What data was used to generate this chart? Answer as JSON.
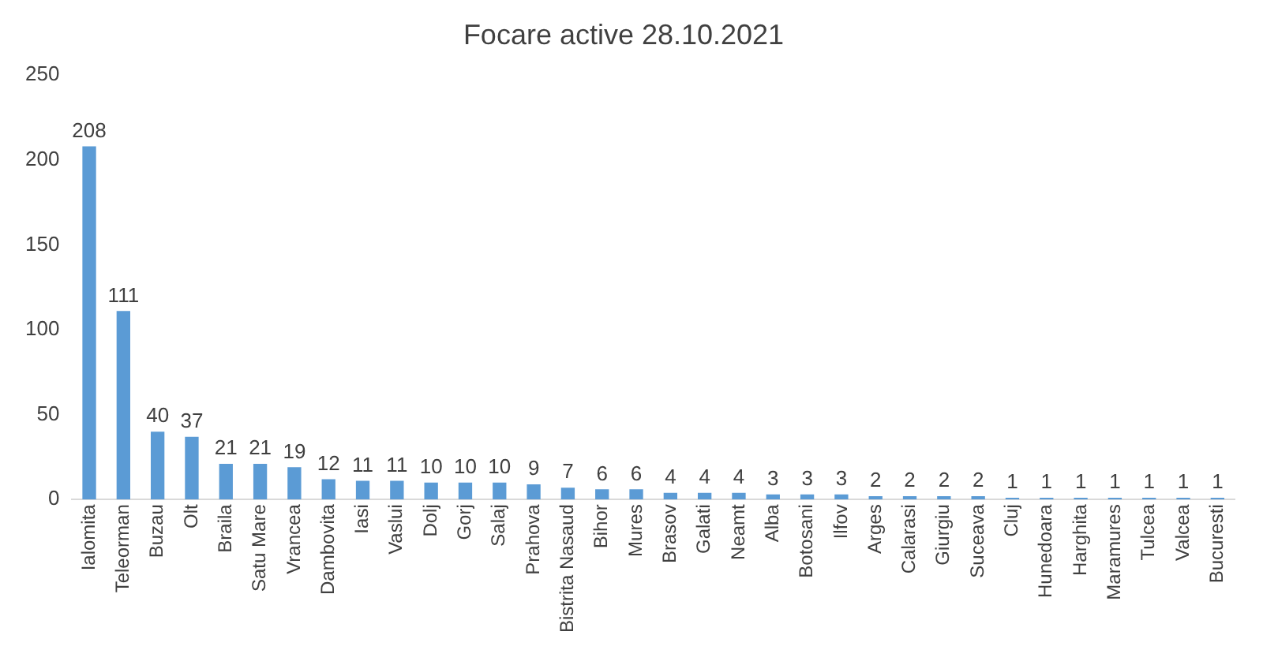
{
  "chart_data": {
    "type": "bar",
    "title": "Focare active 28.10.2021",
    "categories": [
      "Ialomita",
      "Teleorman",
      "Buzau",
      "Olt",
      "Braila",
      "Satu Mare",
      "Vrancea",
      "Dambovita",
      "Iasi",
      "Vaslui",
      "Dolj",
      "Gorj",
      "Salaj",
      "Prahova",
      "Bistrita Nasaud",
      "Bihor",
      "Mures",
      "Brasov",
      "Galati",
      "Neamt",
      "Alba",
      "Botosani",
      "Ilfov",
      "Arges",
      "Calarasi",
      "Giurgiu",
      "Suceava",
      "Cluj",
      "Hunedoara",
      "Harghita",
      "Maramures",
      "Tulcea",
      "Valcea",
      "Bucuresti"
    ],
    "values": [
      208,
      111,
      40,
      37,
      21,
      21,
      19,
      12,
      11,
      11,
      10,
      10,
      10,
      9,
      7,
      6,
      6,
      4,
      4,
      4,
      3,
      3,
      3,
      2,
      2,
      2,
      2,
      1,
      1,
      1,
      1,
      1,
      1,
      1
    ],
    "color": "#5b9bd5",
    "ylim": [
      0,
      250
    ],
    "yticks": [
      0,
      50,
      100,
      150,
      200,
      250
    ],
    "grid": false,
    "data_labels": true
  }
}
